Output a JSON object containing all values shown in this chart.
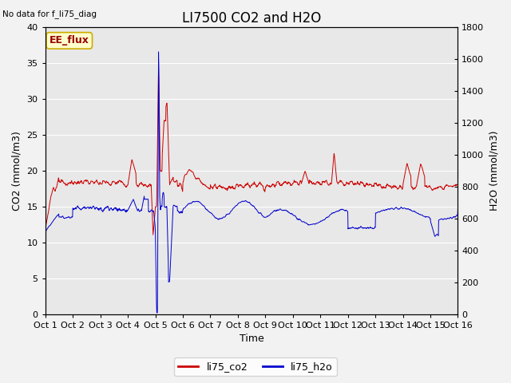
{
  "title": "LI7500 CO2 and H2O",
  "top_left_text": "No data for f_li75_diag",
  "annotation_text": "EE_flux",
  "annotation_bg": "#ffffcc",
  "annotation_border": "#ccaa00",
  "xlabel": "Time",
  "ylabel_left": "CO2 (mmol/m3)",
  "ylabel_right": "H2O (mmol/m3)",
  "ylim_left": [
    0,
    40
  ],
  "ylim_right": [
    0,
    1800
  ],
  "x_tick_labels": [
    "Oct 1",
    "Oct 2",
    "Oct 3",
    "Oct 4",
    "Oct 5",
    "Oct 6",
    "Oct 7",
    "Oct 8",
    "Oct 9",
    "Oct 10",
    "Oct 11",
    "Oct 12",
    "Oct 13",
    "Oct 14",
    "Oct 15",
    "Oct 16"
  ],
  "bg_color": "#e8e8e8",
  "fig_bg_color": "#f2f2f2",
  "line_co2_color": "#cc0000",
  "line_h2o_color": "#0000cc",
  "legend_labels": [
    "li75_co2",
    "li75_h2o"
  ],
  "title_fontsize": 12,
  "label_fontsize": 9,
  "tick_fontsize": 8,
  "n_days": 15,
  "co2_baseline": 18.0,
  "h2o_baseline": 14.5
}
